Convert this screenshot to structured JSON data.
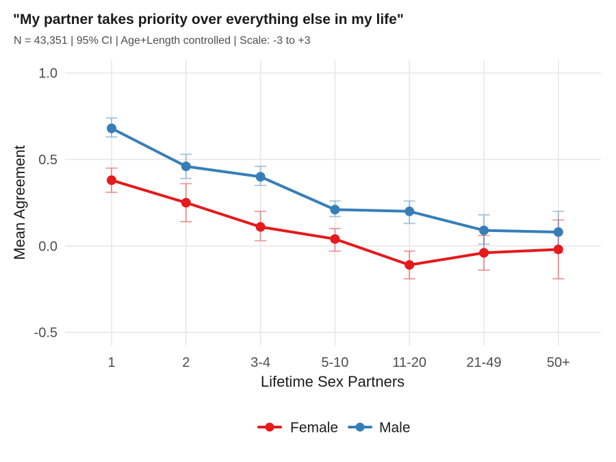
{
  "header": {
    "title": "\"My partner takes priority over everything else in my life\"",
    "subtitle": "N = 43,351 | 95% CI | Age+Length controlled | Scale: -3 to +3"
  },
  "chart_data": {
    "type": "line",
    "title": "\"My partner takes priority over everything else in my life\"",
    "subtitle": "N = 43,351 | 95% CI | Age+Length controlled | Scale: -3 to +3",
    "xlabel": "Lifetime Sex Partners",
    "ylabel": "Mean Agreement",
    "categories": [
      "1",
      "2",
      "3-4",
      "5-10",
      "11-20",
      "21-49",
      "50+"
    ],
    "series": [
      {
        "name": "Female",
        "color": "#e41a1c",
        "values": [
          0.38,
          0.25,
          0.11,
          0.04,
          -0.11,
          -0.04,
          -0.02
        ],
        "ci_low": [
          0.31,
          0.14,
          0.03,
          -0.03,
          -0.19,
          -0.14,
          -0.19
        ],
        "ci_high": [
          0.45,
          0.36,
          0.2,
          0.1,
          -0.03,
          0.06,
          0.15
        ]
      },
      {
        "name": "Male",
        "color": "#377eb8",
        "values": [
          0.68,
          0.46,
          0.4,
          0.21,
          0.2,
          0.09,
          0.08
        ],
        "ci_low": [
          0.63,
          0.39,
          0.35,
          0.17,
          0.13,
          0.01,
          -0.04
        ],
        "ci_high": [
          0.74,
          0.53,
          0.46,
          0.26,
          0.26,
          0.18,
          0.2
        ]
      }
    ],
    "ylim": [
      -0.5,
      1.0
    ],
    "yticks": [
      1.0,
      0.5,
      0.0,
      -0.5
    ],
    "ytick_labels": [
      "1.0",
      "0.5",
      "0.0",
      "-0.5"
    ],
    "error_bars": "95% CI",
    "grid": true,
    "legend_position": "bottom",
    "background": "#ffffff",
    "gridline_color": "#e8e8e8",
    "text_color": "#1a1a1a",
    "tick_color": "#4d4d4d"
  }
}
